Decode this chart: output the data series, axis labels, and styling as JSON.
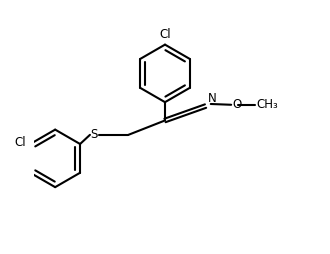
{
  "background_color": "#ffffff",
  "line_color": "#000000",
  "line_width": 1.5,
  "font_size": 8.5,
  "figsize": [
    3.3,
    2.54
  ],
  "dpi": 100,
  "xlim": [
    -4.5,
    5.5
  ],
  "ylim": [
    -4.0,
    5.5
  ]
}
